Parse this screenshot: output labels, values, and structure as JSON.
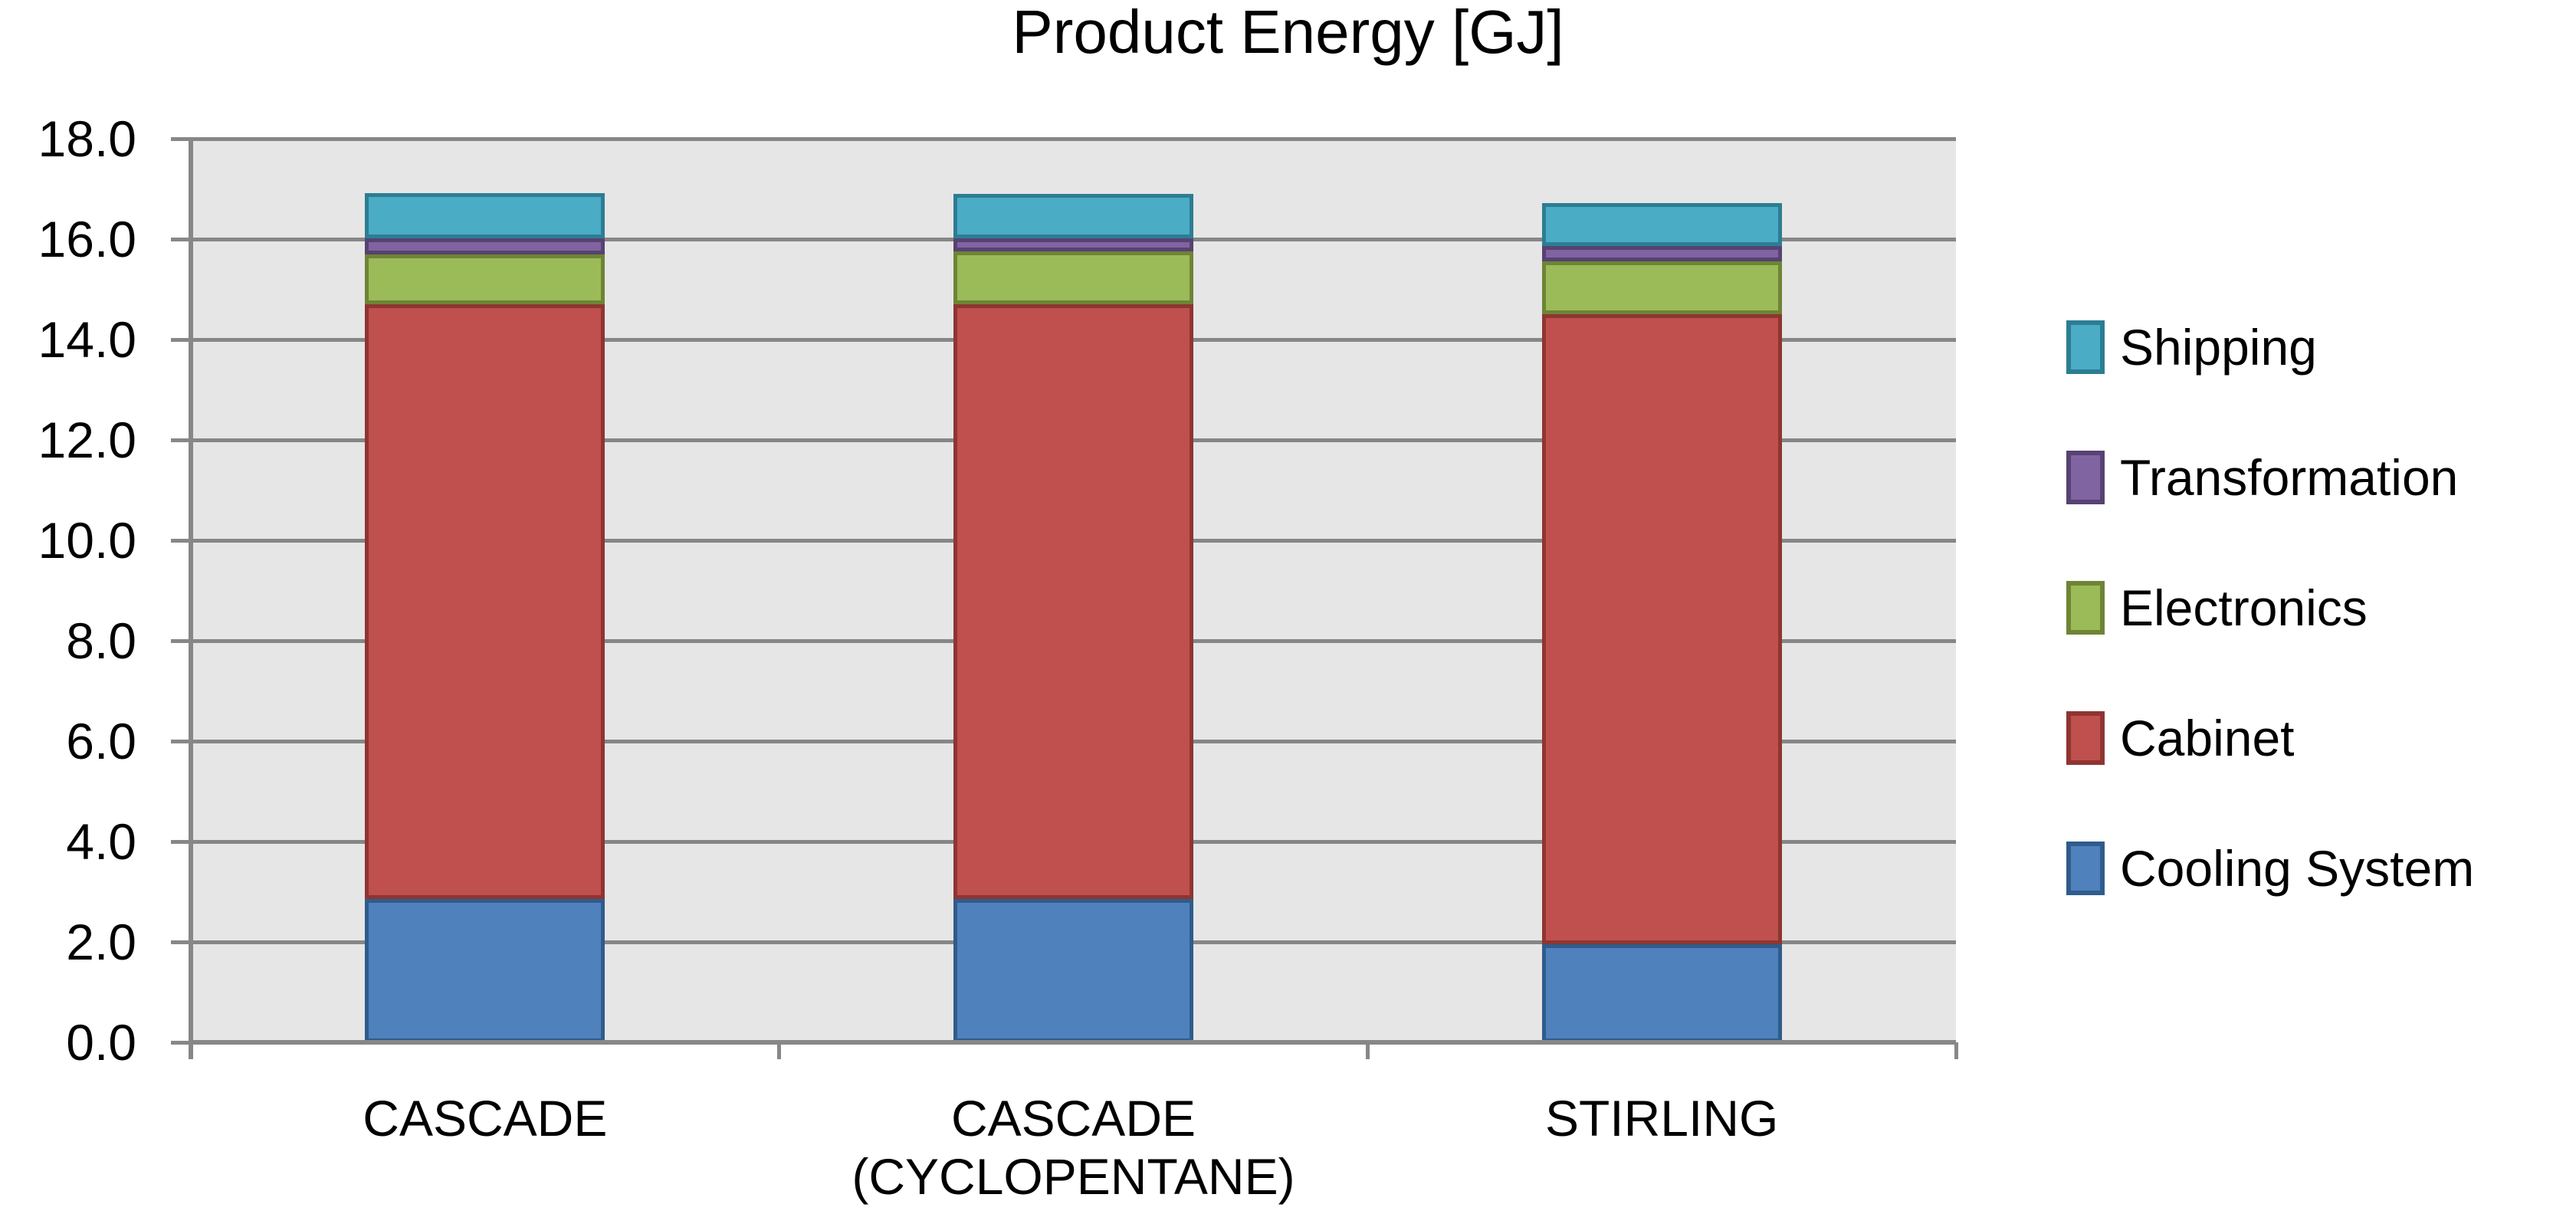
{
  "title": "Product Energy [GJ]",
  "chart_data": {
    "type": "bar",
    "stacked": true,
    "title": "Product Energy [GJ]",
    "unit": "GJ",
    "categories": [
      "CASCADE",
      "CASCADE (CYCLOPENTANE)",
      "STIRLING"
    ],
    "category_label_lines": [
      [
        "CASCADE"
      ],
      [
        "CASCADE",
        "(CYCLOPENTANE)"
      ],
      [
        "STIRLING"
      ]
    ],
    "series": [
      {
        "name": "Cooling System",
        "color": "#4F81BD",
        "border_color": "#2F5C8C",
        "values": [
          2.85,
          2.85,
          1.95
        ]
      },
      {
        "name": "Cabinet",
        "color": "#C0504D",
        "border_color": "#8E3532",
        "values": [
          11.85,
          11.85,
          12.55
        ]
      },
      {
        "name": "Electronics",
        "color": "#9BBB59",
        "border_color": "#6E8435",
        "values": [
          1.0,
          1.05,
          1.05
        ]
      },
      {
        "name": "Transformation",
        "color": "#8064A2",
        "border_color": "#574272",
        "values": [
          0.32,
          0.27,
          0.32
        ]
      },
      {
        "name": "Shipping",
        "color": "#4BACC6",
        "border_color": "#2C7D93",
        "values": [
          0.9,
          0.88,
          0.85
        ]
      }
    ],
    "totals": [
      16.92,
      16.9,
      16.72
    ],
    "legend": [
      "Shipping",
      "Transformation",
      "Electronics",
      "Cabinet",
      "Cooling System"
    ],
    "legend_position": "right",
    "ylim": [
      0,
      18
    ],
    "ytick_step": 2,
    "yticks": [
      "18.0",
      "16.0",
      "14.0",
      "12.0",
      "10.0",
      "8.0",
      "6.0",
      "4.0",
      "2.0",
      "0.0"
    ],
    "grid": true,
    "plot_bg": "#E6E6E6",
    "grid_color": "#868686",
    "axis_color": "#878787",
    "text_color": "#000000"
  }
}
